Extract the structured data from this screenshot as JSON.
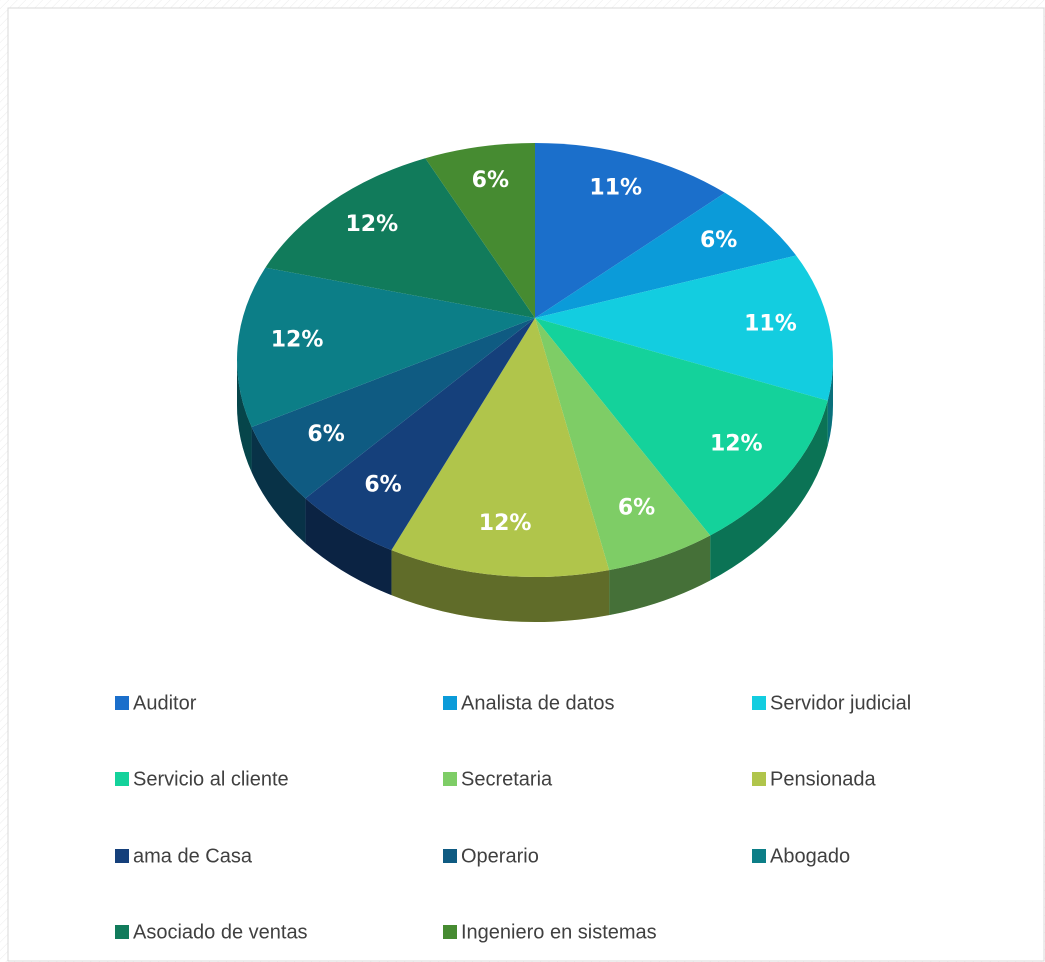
{
  "chart_data": {
    "type": "pie",
    "categories": [
      "Auditor",
      "Analista de datos",
      "Servidor judicial",
      "Servicio al cliente",
      "Secretaria",
      "Pensionada",
      "ama de Casa",
      "Operario",
      "Abogado",
      "Asociado de ventas",
      "Ingeniero en sistemas"
    ],
    "values": [
      11,
      6,
      11,
      12,
      6,
      12,
      6,
      6,
      12,
      12,
      6
    ],
    "value_labels": [
      "11%",
      "6%",
      "11%",
      "12%",
      "6%",
      "12%",
      "6%",
      "6%",
      "12%",
      "12%",
      "6%"
    ],
    "colors": [
      "#1b6fcb",
      "#0b9bd9",
      "#13cde0",
      "#14d29b",
      "#7ecd66",
      "#b0c54b",
      "#15407b",
      "#0f5b82",
      "#0c7e87",
      "#117b5b",
      "#468b31"
    ],
    "legend": "bottom"
  }
}
